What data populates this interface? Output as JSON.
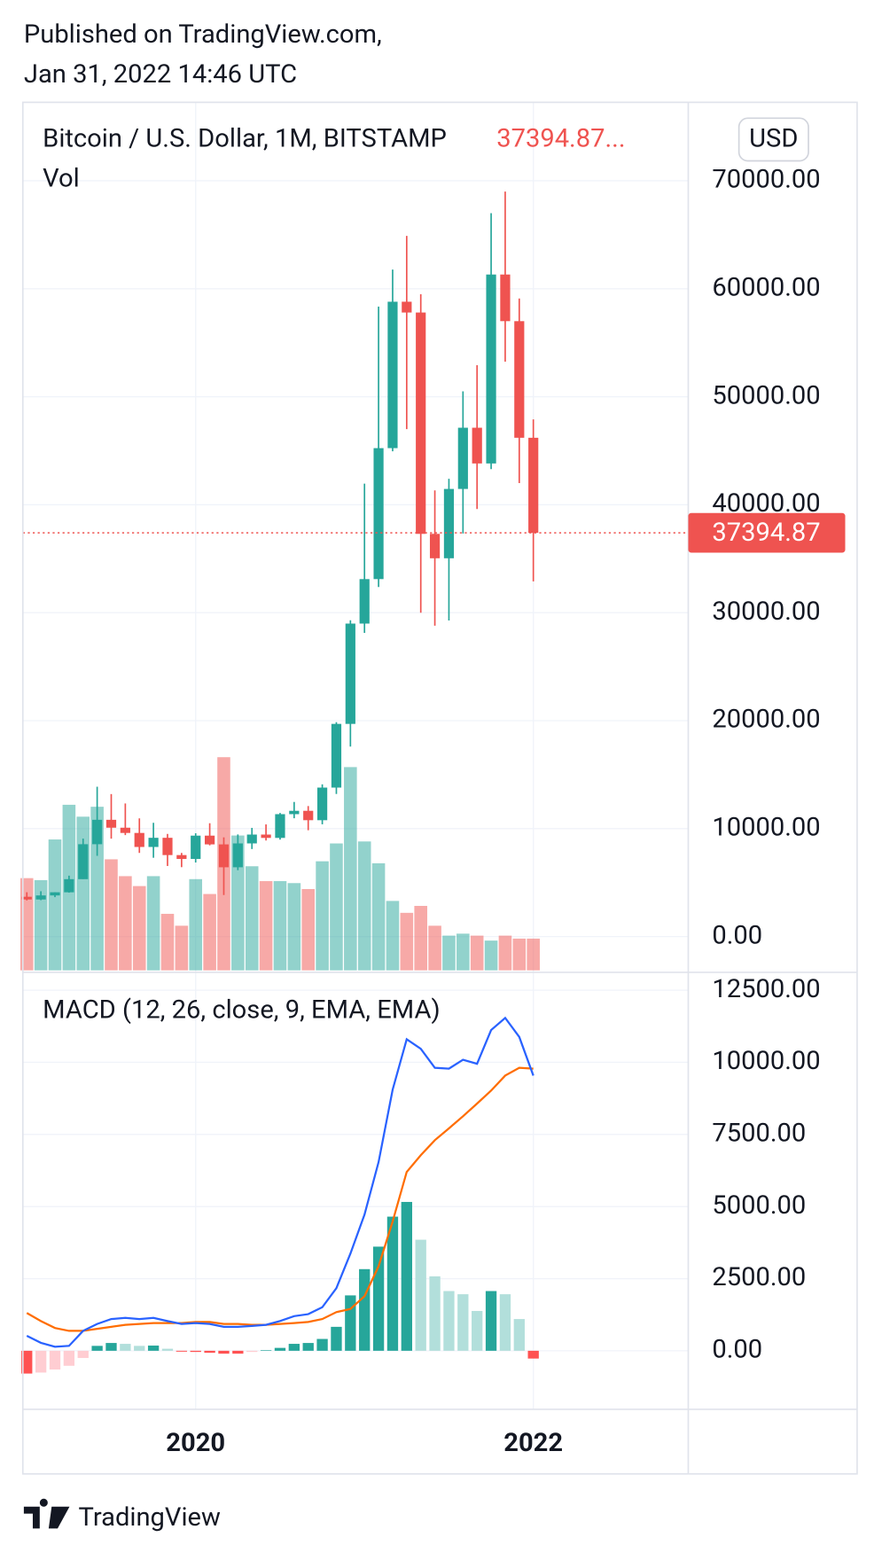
{
  "header": {
    "published": "Published on TradingView.com,",
    "date": "Jan 31, 2022 14:46 UTC"
  },
  "footer": {
    "brand": "TradingView"
  },
  "chart_data": [
    {
      "type": "candlestick",
      "title": "Bitcoin / U.S. Dollar, 1M, BITSTAMP",
      "last_label": "37394.87...",
      "last_price": 37394.87,
      "currency": "USD",
      "categories": [
        null,
        null,
        null,
        null,
        null,
        null,
        null,
        null,
        null,
        null,
        null,
        null,
        "2020",
        null,
        null,
        null,
        null,
        null,
        null,
        null,
        null,
        null,
        null,
        null,
        null,
        null,
        null,
        null,
        null,
        null,
        null,
        null,
        null,
        null,
        null,
        null,
        "2022"
      ],
      "open": [
        3690,
        3437,
        3812,
        4103,
        5320,
        8556,
        10817,
        10085,
        9600,
        8300,
        9150,
        7550,
        7190,
        9350,
        8540,
        6420,
        8630,
        9450,
        9140,
        11340,
        11650,
        10780,
        13800,
        19700,
        28990,
        33110,
        45240,
        58800,
        57800,
        37300,
        35040,
        41460,
        47130,
        43820,
        61320,
        57000,
        46200
      ],
      "high": [
        4109,
        4200,
        4100,
        5643,
        9075,
        13880,
        13200,
        12330,
        10950,
        10540,
        9510,
        7750,
        9570,
        10500,
        9190,
        9460,
        10070,
        10390,
        11450,
        12470,
        12090,
        14100,
        19860,
        29300,
        41950,
        58350,
        61780,
        64900,
        59500,
        41330,
        42400,
        50500,
        52920,
        67000,
        69000,
        59100,
        47900
      ],
      "low": [
        3349,
        3373,
        3655,
        4070,
        5330,
        7480,
        9070,
        9400,
        7750,
        7300,
        6540,
        6430,
        6860,
        8450,
        3850,
        6150,
        8110,
        8900,
        8980,
        10960,
        9850,
        10400,
        13210,
        17600,
        28130,
        32380,
        44950,
        47000,
        30000,
        28800,
        29280,
        37330,
        39600,
        43300,
        53250,
        42000,
        32900
      ],
      "close": [
        3437,
        3812,
        4103,
        5320,
        8556,
        10817,
        10085,
        9600,
        8300,
        9150,
        7550,
        7190,
        9350,
        8540,
        6420,
        8630,
        9450,
        9140,
        11340,
        11650,
        10780,
        13800,
        19700,
        28990,
        33110,
        45240,
        58800,
        57800,
        37300,
        35040,
        41460,
        47130,
        43820,
        61320,
        57000,
        46200,
        37394.87
      ],
      "up_color": "#26a69a",
      "down_color": "#ef5350",
      "volume": {
        "name": "Vol",
        "values": [
          93000,
          91000,
          132000,
          167000,
          155000,
          165000,
          112000,
          95000,
          85000,
          95000,
          57000,
          45000,
          92000,
          77000,
          215000,
          136000,
          105000,
          90000,
          90000,
          88000,
          82000,
          110000,
          128000,
          205000,
          130000,
          108000,
          70000,
          58000,
          65000,
          45000,
          35000,
          37000,
          35000,
          30000,
          35000,
          32000,
          32000
        ]
      },
      "ylim": [
        -3310,
        77270
      ],
      "yticks": [
        {
          "value": 0,
          "label": "0.00"
        },
        {
          "value": 10000,
          "label": "10000.00"
        },
        {
          "value": 20000,
          "label": "20000.00"
        },
        {
          "value": 30000,
          "label": "30000.00"
        },
        {
          "value": 40000,
          "label": "40000.00"
        },
        {
          "value": 50000,
          "label": "50000.00"
        },
        {
          "value": 60000,
          "label": "60000.00"
        },
        {
          "value": 70000,
          "label": "70000.00"
        }
      ],
      "grid": true
    },
    {
      "type": "macd",
      "title": "MACD (12, 26, close, 9, EMA, EMA)",
      "macd": {
        "color": "#2962ff",
        "values": [
          520,
          275,
          140,
          170,
          690,
          930,
          1100,
          1140,
          1100,
          1140,
          1030,
          930,
          960,
          930,
          830,
          830,
          860,
          900,
          1030,
          1200,
          1270,
          1510,
          2170,
          3370,
          4720,
          6540,
          9050,
          10800,
          10470,
          9810,
          9780,
          10090,
          9950,
          11120,
          11540,
          10880,
          9540
        ]
      },
      "signal": {
        "color": "#ff6d00",
        "values": [
          1310,
          1030,
          790,
          690,
          690,
          760,
          830,
          900,
          930,
          960,
          960,
          960,
          1000,
          1000,
          930,
          930,
          900,
          900,
          930,
          960,
          1000,
          1100,
          1340,
          1450,
          1890,
          2930,
          4480,
          6200,
          6780,
          7300,
          7710,
          8130,
          8570,
          9020,
          9540,
          9810,
          9780
        ]
      },
      "histogram": {
        "colors": [
          "#26a69a",
          "#b2dfdb",
          "#ff5252",
          "#ffcdd2"
        ],
        "values": [
          -790,
          -755,
          -650,
          -520,
          -250,
          170,
          270,
          240,
          170,
          180,
          70,
          -30,
          -40,
          -70,
          -100,
          -100,
          -40,
          20,
          100,
          240,
          270,
          410,
          830,
          1920,
          2830,
          3610,
          4650,
          5160,
          3850,
          2580,
          2070,
          1960,
          1380,
          2070,
          1960,
          1100,
          -270
        ]
      },
      "ylim": [
        -2030,
        13120
      ],
      "yticks": [
        {
          "value": 0,
          "label": "0.00"
        },
        {
          "value": 2500,
          "label": "2500.00"
        },
        {
          "value": 5000,
          "label": "5000.00"
        },
        {
          "value": 7500,
          "label": "7500.00"
        },
        {
          "value": 10000,
          "label": "10000.00"
        },
        {
          "value": 12500,
          "label": "12500.00"
        }
      ],
      "grid": true
    }
  ]
}
